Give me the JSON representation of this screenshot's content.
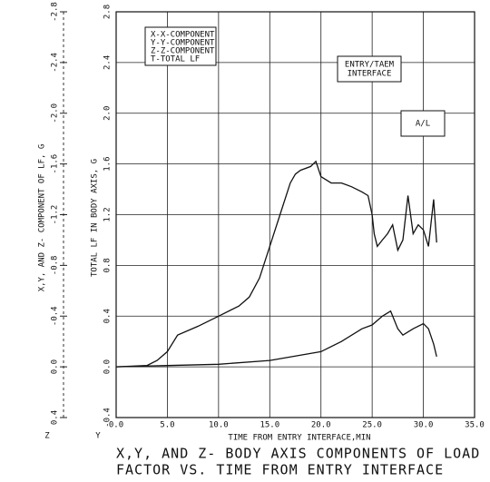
{
  "chart_data": {
    "type": "line",
    "x_label": "TIME FROM ENTRY INTERFACE,MIN",
    "y_label": "TOTAL LF IN BODY AXIS, G",
    "y2_label": "X,Y, AND Z- COMPONENT OF LF, G",
    "caption": [
      "X,Y, AND Z- BODY AXIS COMPONENTS OF LOAD",
      "FACTOR VS. TIME FROM ENTRY INTERFACE"
    ],
    "legend": [
      "X-X-COMPONENT",
      "Y-Y-COMPONENT",
      "Z-Z-COMPONENT",
      "T-TOTAL LF"
    ],
    "annotations": [
      [
        "ENTRY/TAEM",
        "INTERFACE"
      ],
      [
        "A/L"
      ]
    ],
    "axis_markers": [
      "Z",
      "Y"
    ],
    "xlim": [
      0,
      35
    ],
    "xticks": [
      {
        "value": 0,
        "label": "0.0"
      },
      {
        "value": 5,
        "label": "5.0"
      },
      {
        "value": 10,
        "label": "10.0"
      },
      {
        "value": 15,
        "label": "15.0"
      },
      {
        "value": 20,
        "label": "20.0"
      },
      {
        "value": 25,
        "label": "25.0"
      },
      {
        "value": 30,
        "label": "30.0"
      },
      {
        "value": 35,
        "label": "35.0"
      }
    ],
    "ylim": [
      -0.4,
      2.8
    ],
    "yticks": [
      -0.4,
      {
        "value": 0,
        "label": "0.0"
      },
      0.4,
      0.8,
      1.2,
      1.6,
      {
        "value": 2,
        "label": "2.0"
      },
      2.4,
      2.8
    ],
    "y2lim": [
      0.4,
      -2.8
    ],
    "y2ticks": [
      0.4,
      {
        "value": 0,
        "label": "0.0"
      },
      -0.4,
      -0.8,
      -1.2,
      -1.6,
      {
        "value": -2,
        "label": "-2.0"
      },
      -2.4,
      -2.8
    ],
    "grid": true,
    "series": [
      {
        "color": "#111111",
        "x": [
          0,
          3,
          4,
          5,
          6,
          8,
          10,
          12,
          13,
          14,
          15,
          16,
          17,
          17.5,
          18,
          19,
          19.5,
          20,
          21,
          22,
          23,
          24,
          24.6,
          25,
          25.2,
          25.5,
          26,
          26.5,
          27,
          27.5,
          28,
          28.5,
          29,
          29.5,
          30,
          30.5,
          31,
          31.3
        ],
        "values": [
          0.0,
          0.01,
          0.05,
          0.12,
          0.25,
          0.32,
          0.4,
          0.48,
          0.55,
          0.7,
          0.95,
          1.2,
          1.45,
          1.52,
          1.55,
          1.58,
          1.62,
          1.5,
          1.45,
          1.45,
          1.42,
          1.38,
          1.35,
          1.2,
          1.05,
          0.95,
          1.0,
          1.05,
          1.12,
          0.92,
          1.0,
          1.35,
          1.05,
          1.12,
          1.08,
          0.95,
          1.32,
          0.98
        ]
      },
      {
        "color": "#111111",
        "axis": "y2",
        "x": [
          0,
          5,
          10,
          15,
          20,
          22,
          24,
          25,
          26,
          26.8,
          27.5,
          28,
          29,
          30,
          30.5,
          31,
          31.3
        ],
        "values": [
          0.0,
          -0.01,
          -0.02,
          -0.05,
          -0.12,
          -0.2,
          -0.3,
          -0.33,
          -0.4,
          -0.44,
          -0.3,
          -0.25,
          -0.3,
          -0.34,
          -0.3,
          -0.18,
          -0.08
        ]
      }
    ]
  }
}
